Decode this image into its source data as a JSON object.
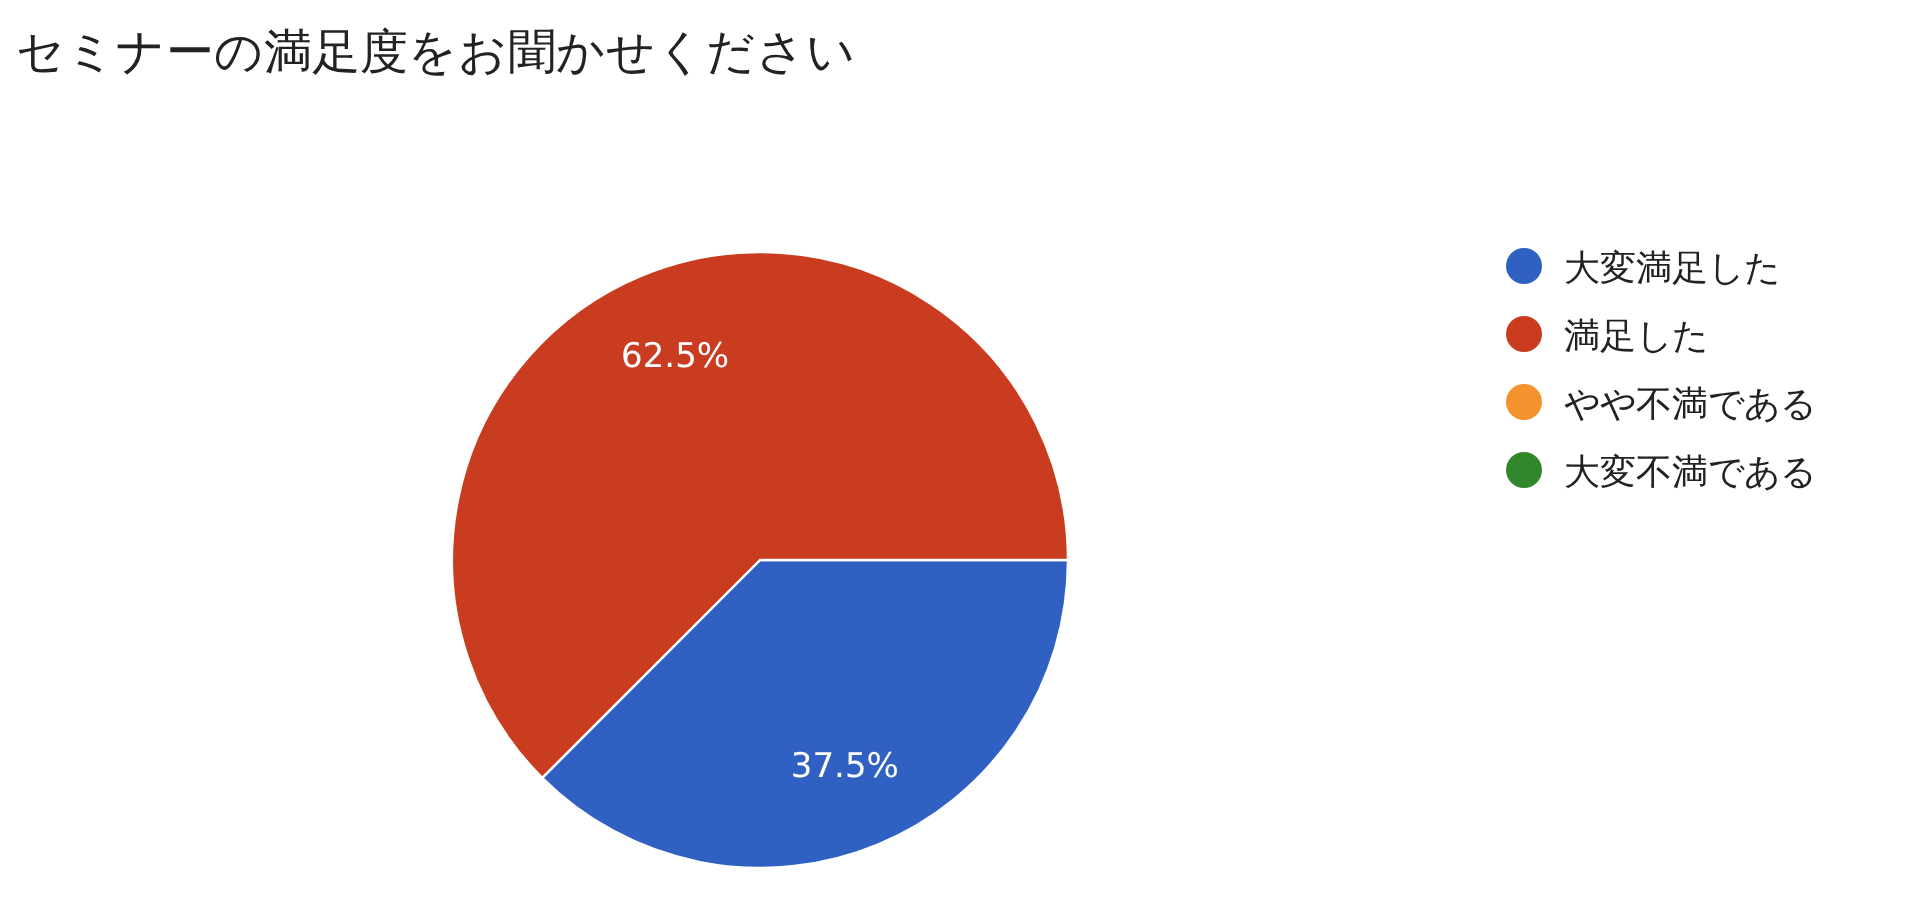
{
  "chart_data": {
    "type": "pie",
    "title": "セミナーの満足度をお聞かせください",
    "categories": [
      "大変満足した",
      "満足した",
      "やや不満である",
      "大変不満である"
    ],
    "values": [
      37.5,
      62.5,
      0,
      0
    ],
    "colors": [
      "#3061c2",
      "#c93c1f",
      "#f4922e",
      "#32862c"
    ],
    "value_labels": [
      "37.5%",
      "62.5%",
      null,
      null
    ],
    "legend": "right"
  }
}
